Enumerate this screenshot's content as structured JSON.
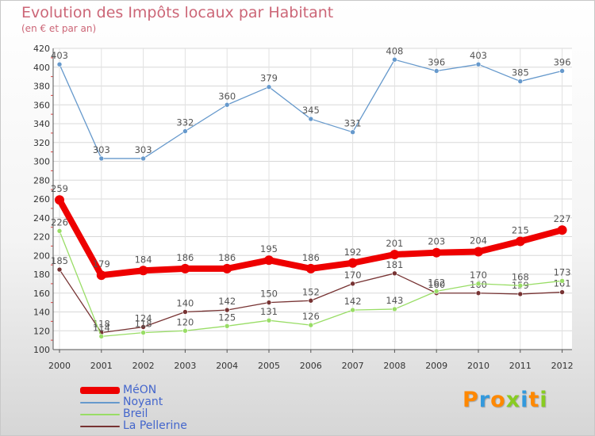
{
  "chart_data": {
    "type": "line",
    "title": "Evolution des Impôts locaux par Habitant",
    "subtitle": "(en € et par an)",
    "xlabel": "",
    "ylabel": "",
    "categories": [
      "2000",
      "2001",
      "2002",
      "2003",
      "2004",
      "2005",
      "2006",
      "2007",
      "2008",
      "2009",
      "2010",
      "2011",
      "2012"
    ],
    "ylim": [
      100,
      420
    ],
    "yticks": [
      100,
      120,
      140,
      160,
      180,
      200,
      220,
      240,
      260,
      280,
      300,
      320,
      340,
      360,
      380,
      400,
      420
    ],
    "grid": true,
    "legend_position": "bottom-left",
    "series": [
      {
        "name": "MéON",
        "color": "#ee0000",
        "values": [
          259,
          179,
          184,
          186,
          186,
          195,
          186,
          192,
          201,
          203,
          204,
          215,
          227
        ]
      },
      {
        "name": "Noyant",
        "color": "#6699cc",
        "values": [
          403,
          303,
          303,
          332,
          360,
          379,
          345,
          331,
          408,
          396,
          403,
          385,
          396
        ]
      },
      {
        "name": "Breil",
        "color": "#99dd66",
        "values": [
          226,
          114,
          118,
          120,
          125,
          131,
          126,
          142,
          143,
          162,
          170,
          168,
          173
        ]
      },
      {
        "name": "La Pellerine",
        "color": "#773333",
        "values": [
          185,
          118,
          124,
          140,
          142,
          150,
          152,
          170,
          181,
          160,
          160,
          159,
          161
        ]
      }
    ]
  },
  "brand": {
    "letters": [
      "P",
      "r",
      "o",
      "x",
      "i",
      "t",
      "i"
    ],
    "colors": [
      "#ff8800",
      "#3399dd",
      "#ff8800",
      "#88cc22",
      "#3399dd",
      "#ff8800",
      "#88cc22"
    ]
  }
}
